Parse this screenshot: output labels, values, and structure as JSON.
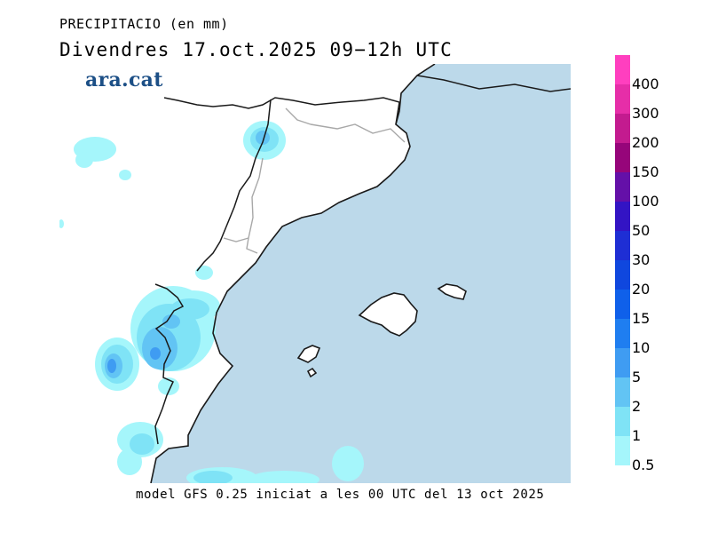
{
  "header": {
    "title": "PRECIPITACIO (en mm)",
    "subtitle": "Divendres  17.oct.2025 09−12h UTC"
  },
  "brand": {
    "logo_text": "ara.cat"
  },
  "footer": {
    "model_text": "model GFS 0.25 iniciat a les 00 UTC del 13 oct 2025"
  },
  "colors": {
    "sea": "#bcd9ea",
    "land": "#ffffff",
    "coast": "#1a1a1a",
    "border": "#a8a8a8"
  },
  "legend": {
    "items": [
      {
        "label": "400",
        "color": "#ff3fbf"
      },
      {
        "label": "300",
        "color": "#e62ea8"
      },
      {
        "label": "200",
        "color": "#c31b8f"
      },
      {
        "label": "150",
        "color": "#96057a"
      },
      {
        "label": "100",
        "color": "#6410a8"
      },
      {
        "label": "50",
        "color": "#3314c4"
      },
      {
        "label": "30",
        "color": "#1e2ed4"
      },
      {
        "label": "20",
        "color": "#0f47de"
      },
      {
        "label": "15",
        "color": "#0f60ea"
      },
      {
        "label": "10",
        "color": "#1f7ef0"
      },
      {
        "label": "5",
        "color": "#3f9cf2"
      },
      {
        "label": "2",
        "color": "#62c4f4"
      },
      {
        "label": "1",
        "color": "#7fe3f6"
      },
      {
        "label": "0.5",
        "color": "#a5f6fb"
      }
    ]
  }
}
